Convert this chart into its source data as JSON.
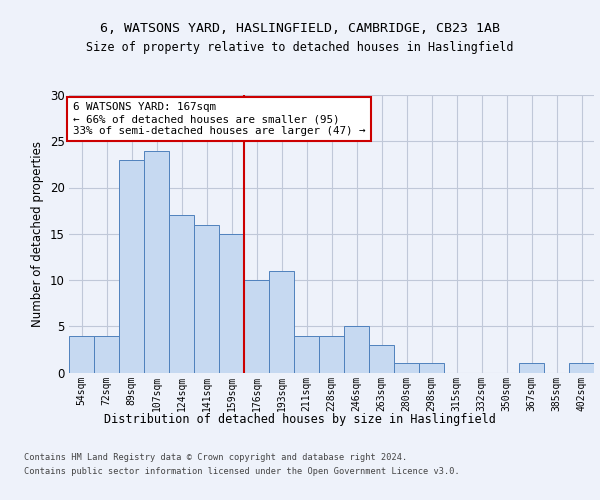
{
  "title1": "6, WATSONS YARD, HASLINGFIELD, CAMBRIDGE, CB23 1AB",
  "title2": "Size of property relative to detached houses in Haslingfield",
  "xlabel": "Distribution of detached houses by size in Haslingfield",
  "ylabel": "Number of detached properties",
  "bin_labels": [
    "54sqm",
    "72sqm",
    "89sqm",
    "107sqm",
    "124sqm",
    "141sqm",
    "159sqm",
    "176sqm",
    "193sqm",
    "211sqm",
    "228sqm",
    "246sqm",
    "263sqm",
    "280sqm",
    "298sqm",
    "315sqm",
    "332sqm",
    "350sqm",
    "367sqm",
    "385sqm",
    "402sqm"
  ],
  "bar_values": [
    4,
    4,
    23,
    24,
    17,
    16,
    15,
    10,
    11,
    4,
    4,
    5,
    3,
    1,
    1,
    0,
    0,
    0,
    1,
    0,
    1
  ],
  "bar_color": "#c6d9f1",
  "bar_edge_color": "#4f81bd",
  "annotation_line1": "6 WATSONS YARD: 167sqm",
  "annotation_line2": "← 66% of detached houses are smaller (95)",
  "annotation_line3": "33% of semi-detached houses are larger (47) →",
  "annotation_box_color": "#ffffff",
  "annotation_box_edge": "#cc0000",
  "vline_color": "#cc0000",
  "vline_pos": 6.5,
  "ylim": [
    0,
    30
  ],
  "yticks": [
    0,
    5,
    10,
    15,
    20,
    25,
    30
  ],
  "footer1": "Contains HM Land Registry data © Crown copyright and database right 2024.",
  "footer2": "Contains public sector information licensed under the Open Government Licence v3.0.",
  "bg_color": "#eef2fa",
  "plot_bg_color": "#eef2fa",
  "grid_color": "#c0c8d8"
}
